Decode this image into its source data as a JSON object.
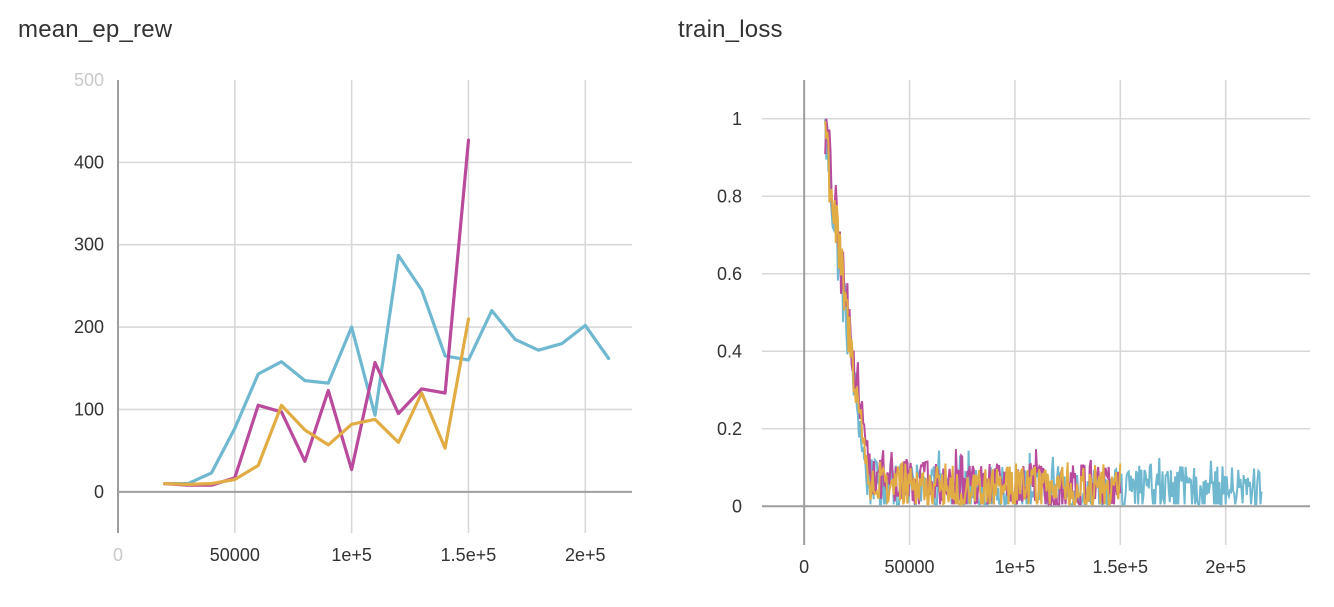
{
  "chart_data": [
    {
      "type": "line",
      "title": "mean_ep_rew",
      "xlabel": "",
      "ylabel": "",
      "xlim": [
        0,
        220000
      ],
      "ylim": [
        -50,
        500
      ],
      "grid": true,
      "x_ticks": [
        {
          "value": 0,
          "label": "0"
        },
        {
          "value": 50000,
          "label": "50000"
        },
        {
          "value": 100000,
          "label": "1e+5"
        },
        {
          "value": 150000,
          "label": "1.5e+5"
        },
        {
          "value": 200000,
          "label": "2e+5"
        }
      ],
      "y_ticks": [
        {
          "value": 0,
          "label": "0"
        },
        {
          "value": 100,
          "label": "100"
        },
        {
          "value": 200,
          "label": "200"
        },
        {
          "value": 300,
          "label": "300"
        },
        {
          "value": 400,
          "label": "400"
        },
        {
          "value": 500,
          "label": "500"
        }
      ],
      "series": [
        {
          "color": "#6fb8d0",
          "x": [
            20000,
            30000,
            40000,
            50000,
            60000,
            70000,
            80000,
            90000,
            100000,
            110000,
            120000,
            130000,
            140000,
            150000,
            160000,
            170000,
            180000,
            190000,
            200000,
            210000
          ],
          "y": [
            10,
            10,
            23,
            77,
            143,
            158,
            135,
            132,
            200,
            93,
            287,
            245,
            165,
            160,
            220,
            185,
            172,
            180,
            202,
            162
          ]
        },
        {
          "color": "#b94a9c",
          "x": [
            20000,
            30000,
            40000,
            50000,
            60000,
            70000,
            80000,
            90000,
            100000,
            110000,
            120000,
            130000,
            140000,
            150000
          ],
          "y": [
            10,
            8,
            8,
            17,
            105,
            97,
            37,
            123,
            27,
            157,
            95,
            125,
            120,
            427
          ]
        },
        {
          "color": "#e2ac44",
          "x": [
            20000,
            30000,
            40000,
            50000,
            60000,
            70000,
            80000,
            90000,
            100000,
            110000,
            120000,
            130000,
            140000,
            150000
          ],
          "y": [
            10,
            9,
            10,
            15,
            32,
            105,
            75,
            57,
            82,
            88,
            60,
            120,
            53,
            210
          ]
        }
      ]
    },
    {
      "type": "line",
      "title": "train_loss",
      "xlabel": "",
      "ylabel": "",
      "xlim": [
        -20000,
        240000
      ],
      "ylim": [
        -0.1,
        1.1
      ],
      "grid": true,
      "x_ticks": [
        {
          "value": 0,
          "label": "0"
        },
        {
          "value": 50000,
          "label": "50000"
        },
        {
          "value": 100000,
          "label": "1e+5"
        },
        {
          "value": 150000,
          "label": "1.5e+5"
        },
        {
          "value": 200000,
          "label": "2e+5"
        }
      ],
      "y_ticks": [
        {
          "value": 0,
          "label": "0"
        },
        {
          "value": 0.2,
          "label": "0.2"
        },
        {
          "value": 0.4,
          "label": "0.4"
        },
        {
          "value": 0.6,
          "label": "0.6"
        },
        {
          "value": 0.8,
          "label": "0.8"
        },
        {
          "value": 1,
          "label": "1"
        }
      ],
      "series": [
        {
          "color": "#6fb8d0",
          "x_range": [
            10000,
            217000
          ],
          "start": 1.0,
          "knee_x": 30000,
          "knee_y": 0.06,
          "floor": 0.04,
          "spike_max": 0.15
        },
        {
          "color": "#b94a9c",
          "x_range": [
            10000,
            150000
          ],
          "start": 1.0,
          "knee_x": 32000,
          "knee_y": 0.07,
          "floor": 0.05,
          "spike_max": 0.16
        },
        {
          "color": "#e2ac44",
          "x_range": [
            10000,
            150000
          ],
          "start": 1.0,
          "knee_x": 31000,
          "knee_y": 0.06,
          "floor": 0.04,
          "spike_max": 0.12
        }
      ]
    }
  ]
}
